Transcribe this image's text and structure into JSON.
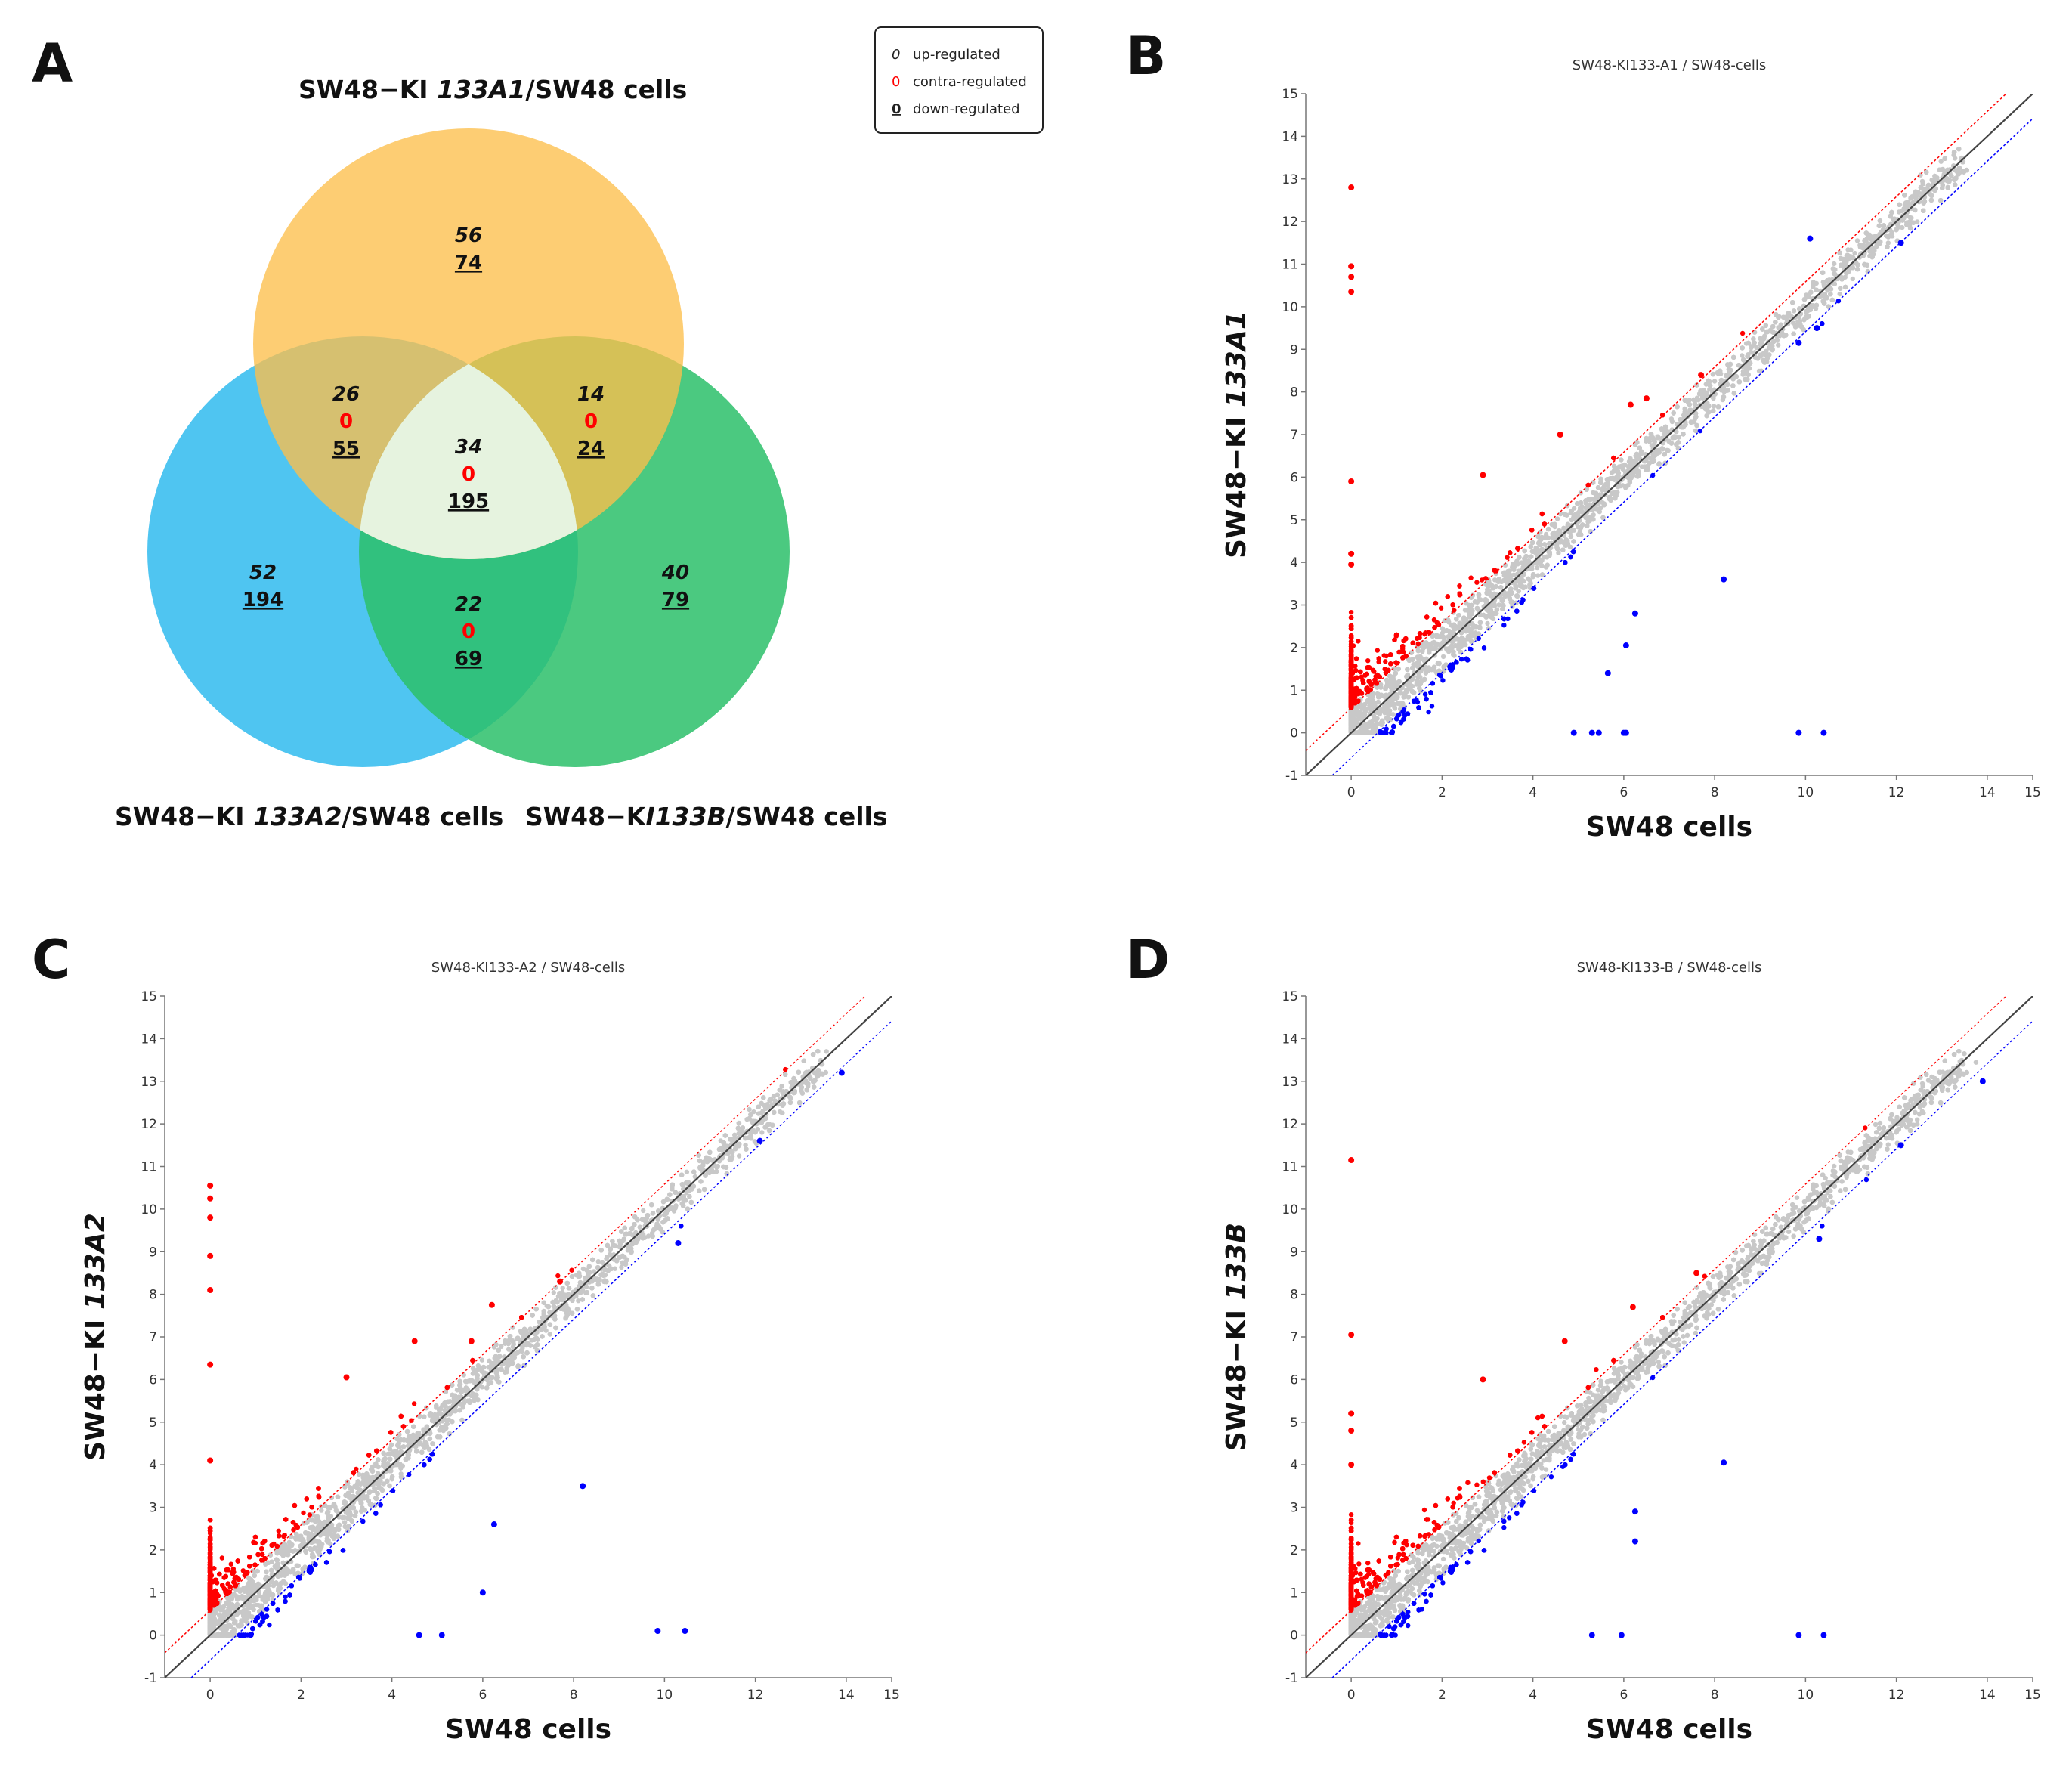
{
  "panels": {
    "a": "A",
    "b": "B",
    "c": "C",
    "d": "D"
  },
  "venn": {
    "legend": {
      "up_symbol": "0",
      "up_label": "up-regulated",
      "contra_symbol": "0",
      "contra_label": "contra-regulated",
      "down_symbol": "0",
      "down_label": "down-regulated"
    },
    "title_a1": {
      "prefix": "SW48−KI ",
      "gene": "133A1",
      "suffix": "/SW48 cells"
    },
    "title_a2": {
      "prefix": "SW48−KI ",
      "gene": "133A2",
      "suffix": "/SW48 cells"
    },
    "title_b": {
      "prefix": "SW48−K",
      "gene": "I133B",
      "suffix": "/SW48 cells"
    },
    "colors": {
      "a1": "#fcbf4c",
      "a2": "#3cbfef",
      "b": "#2bbf6a",
      "contra": "#ff0000"
    },
    "regions": {
      "a1_only": {
        "up": "56",
        "down": "74"
      },
      "a2_only": {
        "up": "52",
        "down": "194"
      },
      "b_only": {
        "up": "40",
        "down": "79"
      },
      "a1_a2": {
        "up": "26",
        "contra": "0",
        "down": "55"
      },
      "a1_b": {
        "up": "14",
        "contra": "0",
        "down": "24"
      },
      "a2_b": {
        "up": "22",
        "contra": "0",
        "down": "69"
      },
      "all": {
        "up": "34",
        "contra": "0",
        "down": "195"
      }
    }
  },
  "chart_data": [
    {
      "type": "scatter",
      "panel": "B",
      "title": "SW48-KI133-A1 / SW48-cells",
      "xlabel": "SW48 cells",
      "ylabel": {
        "prefix": "SW48−KI ",
        "gene": "133A1"
      },
      "xlim": [
        -1,
        15
      ],
      "ylim": [
        -1,
        15
      ],
      "xticks": [
        "0",
        "2",
        "4",
        "6",
        "8",
        "10",
        "12",
        "14",
        "15"
      ],
      "yticks": [
        "-1",
        "0",
        "1",
        "2",
        "3",
        "4",
        "5",
        "6",
        "7",
        "8",
        "9",
        "10",
        "11",
        "12",
        "13",
        "14",
        "15"
      ],
      "reference_lines": {
        "identity": "y = x",
        "up_threshold": "y = x + 0.585",
        "down_threshold": "y = x - 0.585"
      },
      "colors": {
        "up": "#ff0000",
        "down": "#0000ff",
        "unchanged": "#c8c8c8",
        "identity": "#444444"
      },
      "up_outliers": [
        [
          0,
          12.8
        ],
        [
          0,
          10.95
        ],
        [
          0,
          10.7
        ],
        [
          0,
          10.35
        ],
        [
          0,
          5.9
        ],
        [
          0,
          4.2
        ],
        [
          0,
          3.95
        ],
        [
          7.7,
          8.4
        ],
        [
          6.5,
          7.85
        ],
        [
          4.6,
          7.0
        ],
        [
          2.9,
          6.05
        ],
        [
          6.15,
          7.7
        ]
      ],
      "down_outliers": [
        [
          10.1,
          11.6
        ],
        [
          12.1,
          11.5
        ],
        [
          8.2,
          3.6
        ],
        [
          6.25,
          2.8
        ],
        [
          6.05,
          2.05
        ],
        [
          5.65,
          1.4
        ],
        [
          4.9,
          0
        ],
        [
          5.3,
          0
        ],
        [
          5.45,
          0
        ],
        [
          6.0,
          0
        ],
        [
          6.05,
          0
        ],
        [
          9.85,
          0
        ],
        [
          10.4,
          0
        ],
        [
          9.85,
          9.15
        ],
        [
          10.25,
          9.5
        ]
      ]
    },
    {
      "type": "scatter",
      "panel": "C",
      "title": "SW48-KI133-A2 / SW48-cells",
      "xlabel": "SW48 cells",
      "ylabel": {
        "prefix": "SW48−KI ",
        "gene": "133A2"
      },
      "xlim": [
        -1,
        15
      ],
      "ylim": [
        -1,
        15
      ],
      "xticks": [
        "0",
        "2",
        "4",
        "6",
        "8",
        "10",
        "12",
        "14",
        "15"
      ],
      "yticks": [
        "-1",
        "0",
        "1",
        "2",
        "3",
        "4",
        "5",
        "6",
        "7",
        "8",
        "9",
        "10",
        "11",
        "12",
        "13",
        "14",
        "15"
      ],
      "reference_lines": {
        "identity": "y = x",
        "up_threshold": "y = x + 0.585",
        "down_threshold": "y = x - 0.585"
      },
      "colors": {
        "up": "#ff0000",
        "down": "#0000ff",
        "unchanged": "#c8c8c8",
        "identity": "#444444"
      },
      "up_outliers": [
        [
          0,
          10.55
        ],
        [
          0,
          10.25
        ],
        [
          0,
          9.8
        ],
        [
          0,
          8.9
        ],
        [
          0,
          8.1
        ],
        [
          0,
          6.35
        ],
        [
          0,
          4.1
        ],
        [
          7.7,
          8.3
        ],
        [
          6.2,
          7.75
        ],
        [
          4.5,
          6.9
        ],
        [
          3.0,
          6.05
        ],
        [
          5.75,
          6.9
        ]
      ],
      "down_outliers": [
        [
          13.9,
          13.2
        ],
        [
          12.1,
          11.6
        ],
        [
          8.2,
          3.5
        ],
        [
          6.25,
          2.6
        ],
        [
          6.0,
          1.0
        ],
        [
          5.1,
          0
        ],
        [
          4.6,
          0
        ],
        [
          9.85,
          0.1
        ],
        [
          10.45,
          0.1
        ],
        [
          10.3,
          9.2
        ]
      ]
    },
    {
      "type": "scatter",
      "panel": "D",
      "title": "SW48-KI133-B / SW48-cells",
      "xlabel": "SW48 cells",
      "ylabel": {
        "prefix": "SW48−KI ",
        "gene": "133B"
      },
      "xlim": [
        -1,
        15
      ],
      "ylim": [
        -1,
        15
      ],
      "xticks": [
        "0",
        "2",
        "4",
        "6",
        "8",
        "10",
        "12",
        "14",
        "15"
      ],
      "yticks": [
        "-1",
        "0",
        "1",
        "2",
        "3",
        "4",
        "5",
        "6",
        "7",
        "8",
        "9",
        "10",
        "11",
        "12",
        "13",
        "14",
        "15"
      ],
      "reference_lines": {
        "identity": "y = x",
        "up_threshold": "y = x + 0.585",
        "down_threshold": "y = x - 0.585"
      },
      "colors": {
        "up": "#ff0000",
        "down": "#0000ff",
        "unchanged": "#c8c8c8",
        "identity": "#444444"
      },
      "up_outliers": [
        [
          0,
          11.15
        ],
        [
          0,
          7.05
        ],
        [
          0,
          5.2
        ],
        [
          0,
          4.8
        ],
        [
          0,
          4.0
        ],
        [
          7.6,
          8.5
        ],
        [
          6.2,
          7.7
        ],
        [
          4.7,
          6.9
        ],
        [
          2.9,
          6.0
        ]
      ],
      "down_outliers": [
        [
          13.9,
          13.0
        ],
        [
          12.1,
          11.5
        ],
        [
          8.2,
          4.05
        ],
        [
          6.25,
          2.9
        ],
        [
          6.25,
          2.2
        ],
        [
          5.3,
          0
        ],
        [
          5.95,
          0
        ],
        [
          9.85,
          0
        ],
        [
          10.4,
          0
        ],
        [
          10.3,
          9.3
        ]
      ]
    }
  ]
}
